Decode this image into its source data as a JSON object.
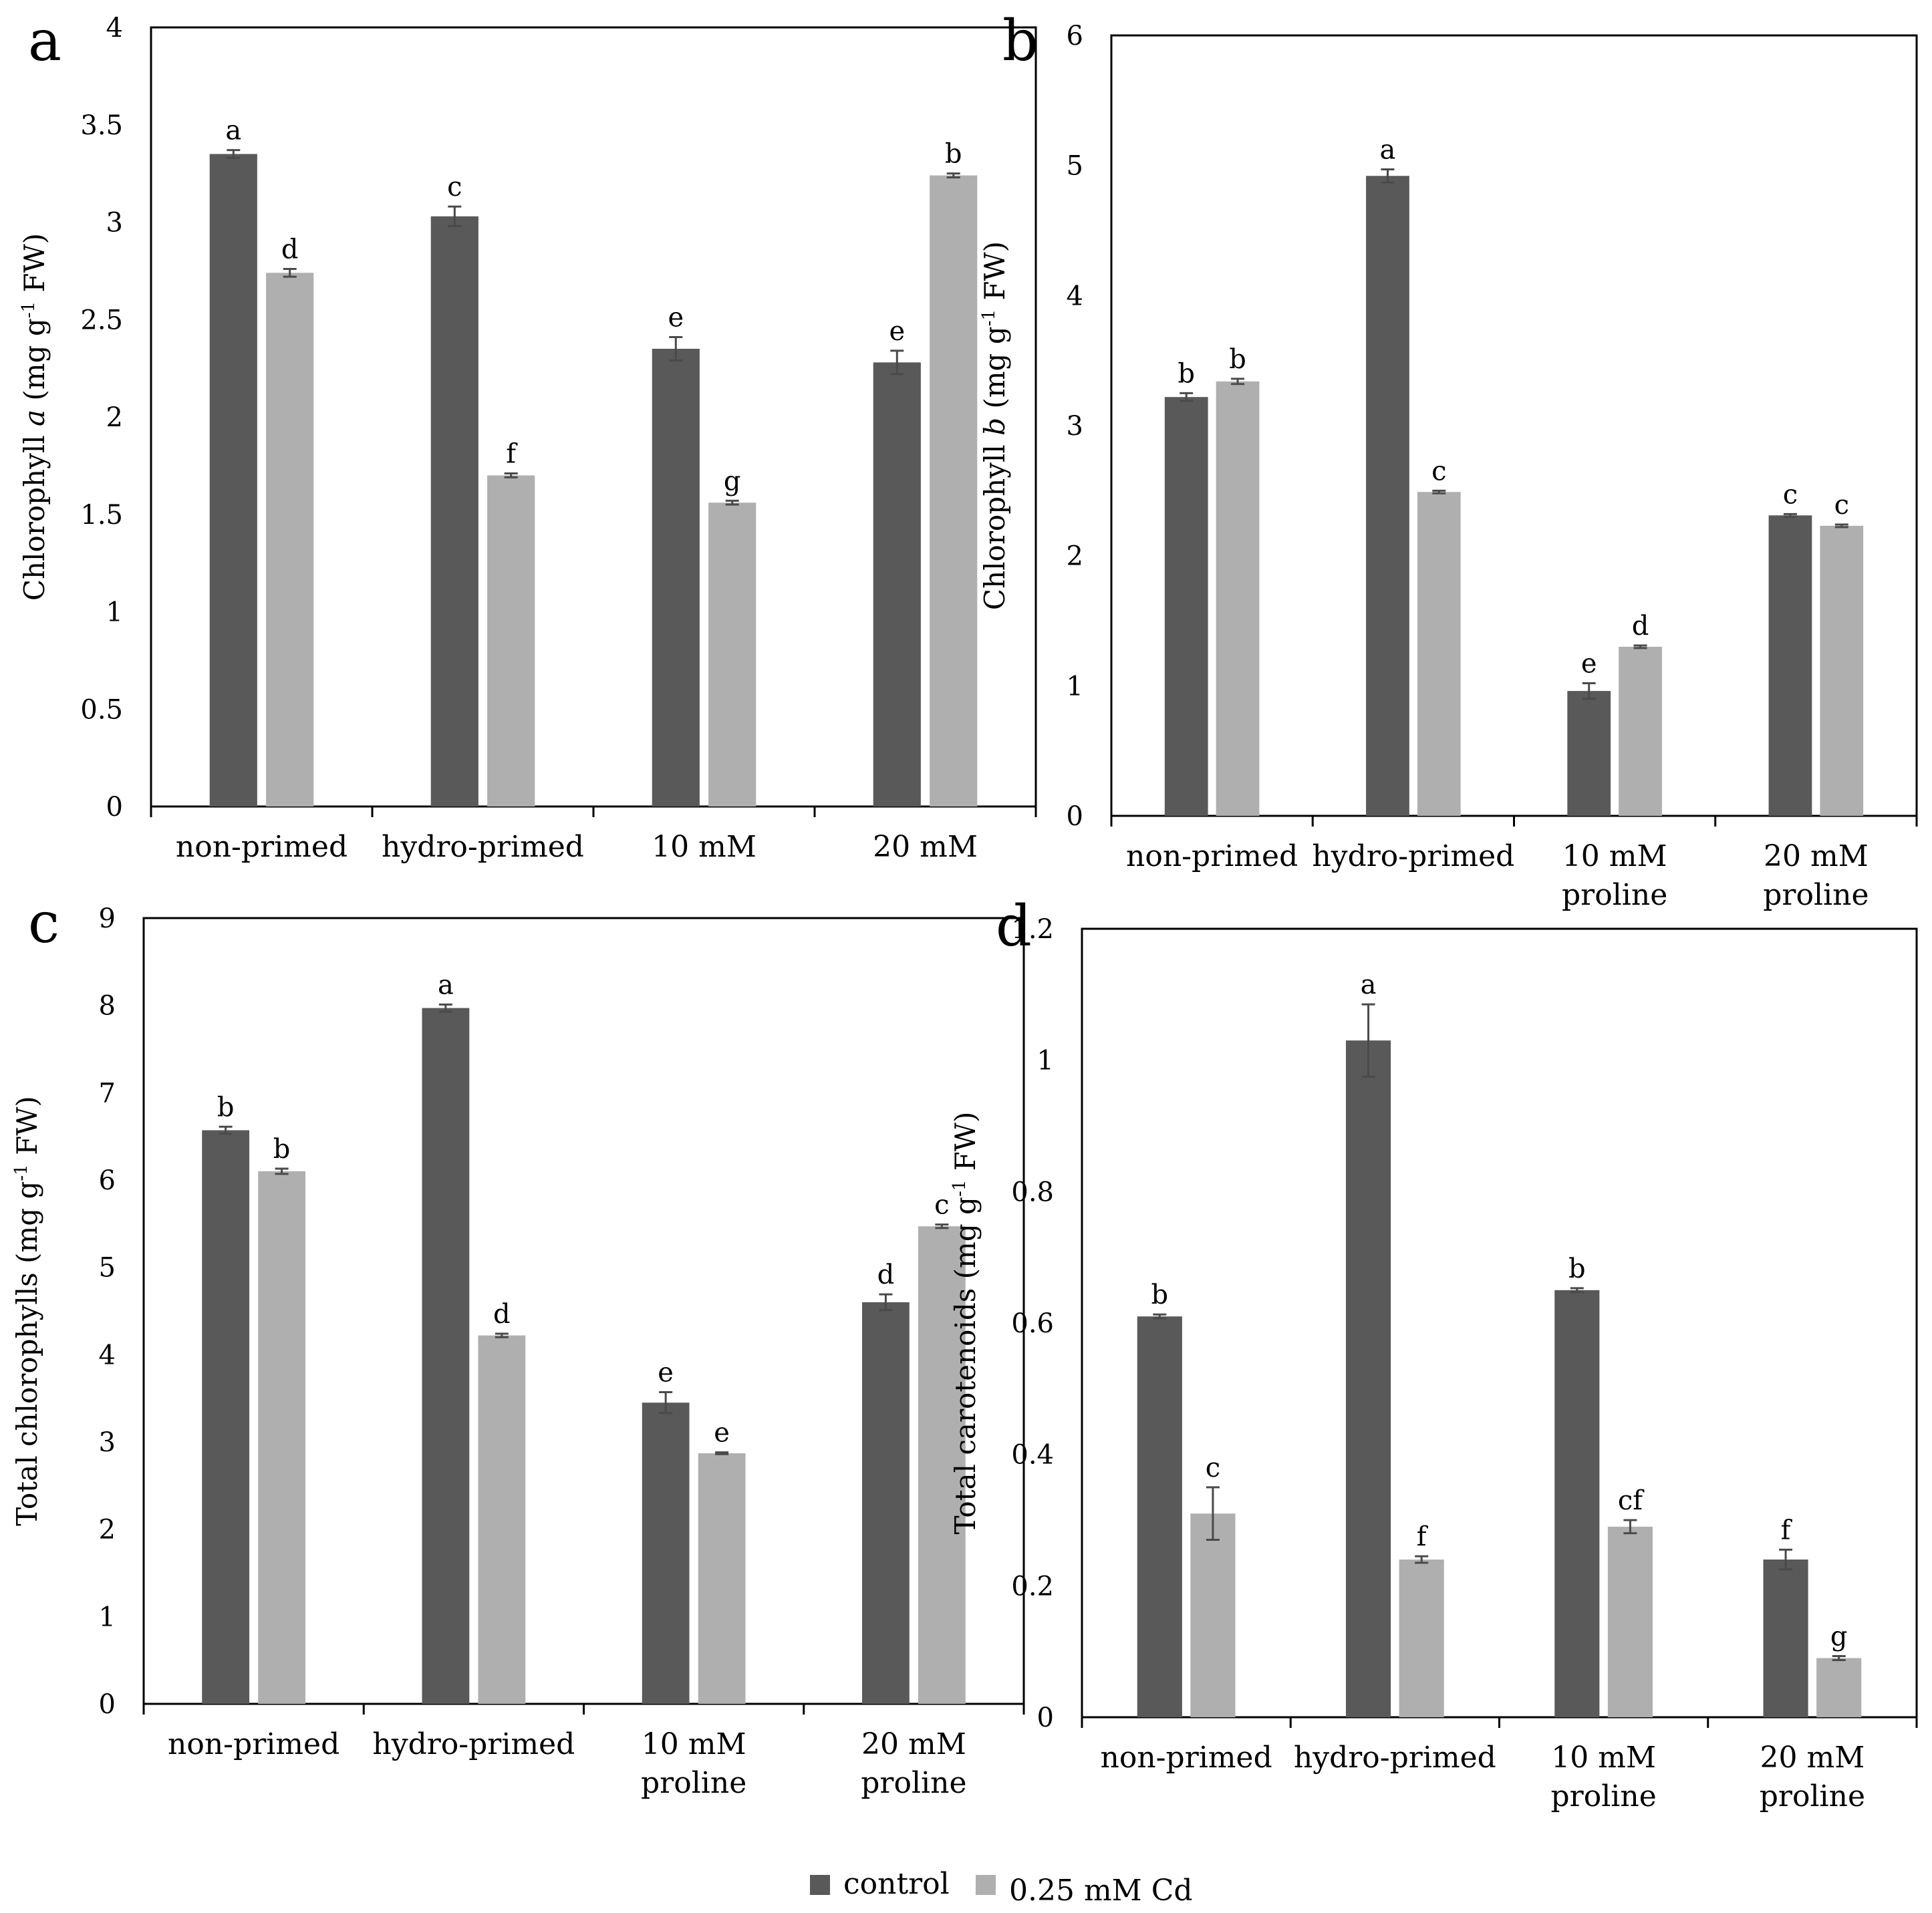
{
  "chart_data": [
    {
      "panel_letter": "a",
      "type": "bar",
      "ylabel": "Chlorophyll a (mg g-1 FW)",
      "ylabel_parts": [
        {
          "text": "Chlorophyll ",
          "style": "normal"
        },
        {
          "text": "a",
          "style": "italic"
        },
        {
          "text": " (mg g",
          "style": "normal"
        },
        {
          "text": "-1",
          "style": "sup"
        },
        {
          "text": " FW)",
          "style": "normal"
        }
      ],
      "ylim": [
        0,
        4
      ],
      "yticks": [
        "0",
        "0.5",
        "1",
        "1.5",
        "2",
        "2.5",
        "3",
        "3.5",
        "4"
      ],
      "categories": [
        [
          "non-primed"
        ],
        [
          "hydro-primed"
        ],
        [
          "10 mM"
        ],
        [
          "20 mM"
        ]
      ],
      "series": [
        {
          "name": "control",
          "values": [
            3.35,
            3.03,
            2.35,
            2.28
          ],
          "errors": [
            0.02,
            0.05,
            0.06,
            0.06
          ],
          "letters": [
            "a",
            "c",
            "e",
            "e"
          ]
        },
        {
          "name": "0.25 mM Cd",
          "values": [
            2.74,
            1.7,
            1.56,
            3.24
          ],
          "errors": [
            0.02,
            0.01,
            0.01,
            0.01
          ],
          "letters": [
            "d",
            "f",
            "g",
            "b"
          ]
        }
      ]
    },
    {
      "panel_letter": "b",
      "type": "bar",
      "ylabel": "Chlorophyll b (mg g-1 FW)",
      "ylabel_parts": [
        {
          "text": "Chlorophyll ",
          "style": "normal"
        },
        {
          "text": "b",
          "style": "italic"
        },
        {
          "text": " (mg g",
          "style": "normal"
        },
        {
          "text": "-1",
          "style": "sup"
        },
        {
          "text": " FW)",
          "style": "normal"
        }
      ],
      "ylim": [
        0,
        6
      ],
      "yticks": [
        "0",
        "1",
        "2",
        "3",
        "4",
        "5",
        "6"
      ],
      "categories": [
        [
          "non-primed"
        ],
        [
          "hydro-primed"
        ],
        [
          "10 mM",
          "proline"
        ],
        [
          "20 mM",
          "proline"
        ]
      ],
      "series": [
        {
          "name": "control",
          "values": [
            3.22,
            4.92,
            0.96,
            2.31
          ],
          "errors": [
            0.03,
            0.05,
            0.06,
            0.01
          ],
          "letters": [
            "b",
            "a",
            "e",
            "c"
          ]
        },
        {
          "name": "0.25 mM Cd",
          "values": [
            3.34,
            2.49,
            1.3,
            2.23
          ],
          "errors": [
            0.02,
            0.01,
            0.01,
            0.01
          ],
          "letters": [
            "b",
            "c",
            "d",
            "c"
          ]
        }
      ]
    },
    {
      "panel_letter": "c",
      "type": "bar",
      "ylabel": "Total chlorophylls (mg g-1 FW)",
      "ylabel_parts": [
        {
          "text": "Total chlorophylls (mg g",
          "style": "normal"
        },
        {
          "text": "-1",
          "style": "sup"
        },
        {
          "text": " FW)",
          "style": "normal"
        }
      ],
      "ylim": [
        0,
        9
      ],
      "yticks": [
        "0",
        "1",
        "2",
        "3",
        "4",
        "5",
        "6",
        "7",
        "8",
        "9"
      ],
      "categories": [
        [
          "non-primed"
        ],
        [
          "hydro-primed"
        ],
        [
          "10 mM",
          "proline"
        ],
        [
          "20 mM",
          "proline"
        ]
      ],
      "series": [
        {
          "name": "control",
          "values": [
            6.57,
            7.97,
            3.45,
            4.6
          ],
          "errors": [
            0.04,
            0.04,
            0.12,
            0.09
          ],
          "letters": [
            "b",
            "a",
            "e",
            "d"
          ]
        },
        {
          "name": "0.25 mM Cd",
          "values": [
            6.1,
            4.22,
            2.87,
            5.47
          ],
          "errors": [
            0.03,
            0.02,
            0.01,
            0.02
          ],
          "letters": [
            "b",
            "d",
            "e",
            "c"
          ]
        }
      ]
    },
    {
      "panel_letter": "d",
      "type": "bar",
      "ylabel": "Total carotenoids (mg g-1 FW)",
      "ylabel_parts": [
        {
          "text": "Total carotenoids (mg g",
          "style": "normal"
        },
        {
          "text": "-1",
          "style": "sup"
        },
        {
          "text": " FW)",
          "style": "normal"
        }
      ],
      "ylim": [
        0,
        1.2
      ],
      "yticks": [
        "0",
        "0.2",
        "0.4",
        "0.6",
        "0.8",
        "1",
        "1.2"
      ],
      "categories": [
        [
          "non-primed"
        ],
        [
          "hydro-primed"
        ],
        [
          "10 mM",
          "proline"
        ],
        [
          "20 mM",
          "proline"
        ]
      ],
      "series": [
        {
          "name": "control",
          "values": [
            0.61,
            1.03,
            0.65,
            0.24
          ],
          "errors": [
            0.003,
            0.055,
            0.003,
            0.015
          ],
          "letters": [
            "b",
            "a",
            "b",
            "f"
          ]
        },
        {
          "name": "0.25 mM Cd",
          "values": [
            0.31,
            0.24,
            0.29,
            0.09
          ],
          "errors": [
            0.04,
            0.005,
            0.01,
            0.003
          ],
          "letters": [
            "c",
            "f",
            "cf",
            "g"
          ]
        }
      ]
    }
  ],
  "legend": {
    "items": [
      {
        "label": "control",
        "color": "#595959"
      },
      {
        "label": "0.25 mM Cd",
        "color": "#afafaf"
      }
    ]
  }
}
